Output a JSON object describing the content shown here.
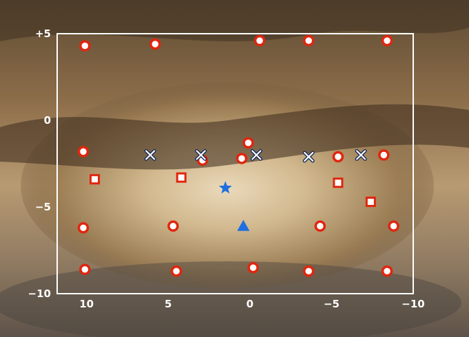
{
  "chart_data": {
    "type": "scatter",
    "title": "",
    "xlabel": "",
    "ylabel": "",
    "xlim": [
      11.8,
      -10
    ],
    "ylim": [
      -10,
      5
    ],
    "x_direction": "decreasing",
    "grid": false,
    "legend": "none",
    "background": "Milky Way galactic center photograph",
    "x_ticks": [
      {
        "value": 10,
        "label": "10"
      },
      {
        "value": 5,
        "label": "5"
      },
      {
        "value": 0,
        "label": "0"
      },
      {
        "value": -5,
        "label": "−5"
      },
      {
        "value": -10,
        "label": "−10"
      }
    ],
    "y_ticks": [
      {
        "value": 5,
        "label": "+5"
      },
      {
        "value": 0,
        "label": "0"
      },
      {
        "value": -5,
        "label": "−5"
      },
      {
        "value": -10,
        "label": "−10"
      }
    ],
    "series": [
      {
        "marker": "circle",
        "color": "#e0260f",
        "points": [
          [
            10.1,
            4.3
          ],
          [
            5.8,
            4.4
          ],
          [
            -0.6,
            4.6
          ],
          [
            -3.6,
            4.6
          ],
          [
            -8.4,
            4.6
          ],
          [
            10.2,
            -1.8
          ],
          [
            2.9,
            -2.3
          ],
          [
            0.1,
            -1.3
          ],
          [
            0.5,
            -2.2
          ],
          [
            -5.4,
            -2.1
          ],
          [
            -8.2,
            -2.0
          ],
          [
            10.2,
            -6.2
          ],
          [
            4.7,
            -6.1
          ],
          [
            -4.3,
            -6.1
          ],
          [
            -8.8,
            -6.1
          ],
          [
            10.1,
            -8.6
          ],
          [
            4.5,
            -8.7
          ],
          [
            -0.2,
            -8.5
          ],
          [
            -3.6,
            -8.7
          ],
          [
            -8.4,
            -8.7
          ]
        ]
      },
      {
        "marker": "square",
        "color": "#e0260f",
        "points": [
          [
            9.5,
            -3.4
          ],
          [
            4.2,
            -3.3
          ],
          [
            -5.4,
            -3.6
          ],
          [
            -7.4,
            -4.7
          ]
        ]
      },
      {
        "marker": "x",
        "color": "#1a2b55",
        "points": [
          [
            6.1,
            -2.0
          ],
          [
            3.0,
            -2.0
          ],
          [
            -0.4,
            -2.0
          ],
          [
            -3.6,
            -2.1
          ],
          [
            -6.8,
            -2.0
          ]
        ]
      },
      {
        "marker": "star",
        "color": "#1f6fe0",
        "points": [
          [
            1.5,
            -3.9
          ]
        ]
      },
      {
        "marker": "triangle",
        "color": "#1f6fe0",
        "points": [
          [
            0.4,
            -6.1
          ]
        ]
      }
    ]
  }
}
